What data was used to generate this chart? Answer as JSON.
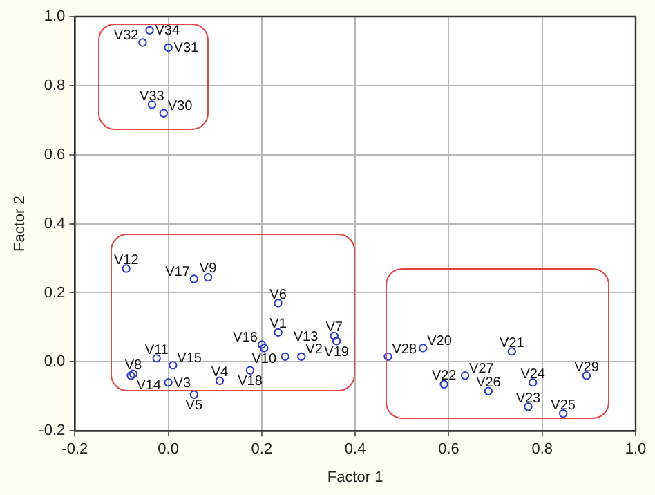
{
  "chart_data": {
    "type": "scatter",
    "xlabel": "Factor 1",
    "ylabel": "Factor 2",
    "xlim": [
      -0.2,
      1.0
    ],
    "ylim": [
      -0.2,
      1.0
    ],
    "xticks": [
      {
        "value": -0.2,
        "label": "-0.2"
      },
      {
        "value": 0,
        "label": "0.0"
      },
      {
        "value": 0.2,
        "label": "0.2"
      },
      {
        "value": 0.4,
        "label": "0.4"
      },
      {
        "value": 0.6,
        "label": "0.6"
      },
      {
        "value": 0.8,
        "label": "0.8"
      },
      {
        "value": 1.0,
        "label": "1.0"
      }
    ],
    "yticks": [
      {
        "value": -0.2,
        "label": "-0.2"
      },
      {
        "value": 0,
        "label": "0.0"
      },
      {
        "value": 0.2,
        "label": "0.2"
      },
      {
        "value": 0.4,
        "label": "0.4"
      },
      {
        "value": 0.6,
        "label": "0.6"
      },
      {
        "value": 0.8,
        "label": "0.8"
      },
      {
        "value": 1.0,
        "label": "1.0"
      }
    ],
    "grid": true,
    "legend": false,
    "marker": "circle",
    "series": [
      {
        "name": "V34",
        "color": "#2a3cc8",
        "x": [
          -0.04
        ],
        "values": [
          0.96
        ]
      },
      {
        "name": "V32",
        "color": "#2a3cc8",
        "x": [
          -0.055
        ],
        "values": [
          0.925
        ]
      },
      {
        "name": "V31",
        "color": "#2a3cc8",
        "x": [
          0.0
        ],
        "values": [
          0.91
        ]
      },
      {
        "name": "V33",
        "color": "#2a3cc8",
        "x": [
          -0.035
        ],
        "values": [
          0.745
        ]
      },
      {
        "name": "V30",
        "color": "#2a3cc8",
        "x": [
          -0.01
        ],
        "values": [
          0.72
        ]
      },
      {
        "name": "V12",
        "color": "#2a3cc8",
        "x": [
          -0.09
        ],
        "values": [
          0.27
        ]
      },
      {
        "name": "V17",
        "color": "#2a3cc8",
        "x": [
          0.055
        ],
        "values": [
          0.24
        ]
      },
      {
        "name": "V9",
        "color": "#2a3cc8",
        "x": [
          0.085
        ],
        "values": [
          0.245
        ]
      },
      {
        "name": "V6",
        "color": "#2a3cc8",
        "x": [
          0.235
        ],
        "values": [
          0.17
        ]
      },
      {
        "name": "V1",
        "color": "#2a3cc8",
        "x": [
          0.235
        ],
        "values": [
          0.085
        ]
      },
      {
        "name": "V16",
        "color": "#2a3cc8",
        "x": [
          0.2
        ],
        "values": [
          0.05
        ]
      },
      {
        "name": "V10",
        "color": "#2a3cc8",
        "x": [
          0.205
        ],
        "values": [
          0.04
        ]
      },
      {
        "name": "V11",
        "color": "#2a3cc8",
        "x": [
          -0.025
        ],
        "values": [
          0.01
        ]
      },
      {
        "name": "V15",
        "color": "#2a3cc8",
        "x": [
          0.01
        ],
        "values": [
          -0.01
        ]
      },
      {
        "name": "V14",
        "color": "#2a3cc8",
        "x": [
          -0.08
        ],
        "values": [
          -0.04
        ]
      },
      {
        "name": "V8",
        "color": "#2a3cc8",
        "x": [
          -0.075
        ],
        "values": [
          -0.035
        ]
      },
      {
        "name": "V3",
        "color": "#2a3cc8",
        "x": [
          0.0
        ],
        "values": [
          -0.06
        ]
      },
      {
        "name": "V5",
        "color": "#2a3cc8",
        "x": [
          0.055
        ],
        "values": [
          -0.095
        ]
      },
      {
        "name": "V4",
        "color": "#2a3cc8",
        "x": [
          0.11
        ],
        "values": [
          -0.055
        ]
      },
      {
        "name": "V18",
        "color": "#2a3cc8",
        "x": [
          0.175
        ],
        "values": [
          -0.025
        ]
      },
      {
        "name": "V13",
        "color": "#2a3cc8",
        "x": [
          0.25
        ],
        "values": [
          0.015
        ]
      },
      {
        "name": "V2",
        "color": "#2a3cc8",
        "x": [
          0.285
        ],
        "values": [
          0.015
        ]
      },
      {
        "name": "V7",
        "color": "#2a3cc8",
        "x": [
          0.355
        ],
        "values": [
          0.075
        ]
      },
      {
        "name": "V19",
        "color": "#2a3cc8",
        "x": [
          0.36
        ],
        "values": [
          0.06
        ]
      },
      {
        "name": "V28",
        "color": "#2a3cc8",
        "x": [
          0.47
        ],
        "values": [
          0.015
        ]
      },
      {
        "name": "V20",
        "color": "#2a3cc8",
        "x": [
          0.545
        ],
        "values": [
          0.04
        ]
      },
      {
        "name": "V22",
        "color": "#2a3cc8",
        "x": [
          0.59
        ],
        "values": [
          -0.065
        ]
      },
      {
        "name": "V27",
        "color": "#2a3cc8",
        "x": [
          0.635
        ],
        "values": [
          -0.04
        ]
      },
      {
        "name": "V26",
        "color": "#2a3cc8",
        "x": [
          0.685
        ],
        "values": [
          -0.085
        ]
      },
      {
        "name": "V21",
        "color": "#2a3cc8",
        "x": [
          0.735
        ],
        "values": [
          0.03
        ]
      },
      {
        "name": "V24",
        "color": "#2a3cc8",
        "x": [
          0.78
        ],
        "values": [
          -0.06
        ]
      },
      {
        "name": "V23",
        "color": "#2a3cc8",
        "x": [
          0.77
        ],
        "values": [
          -0.13
        ]
      },
      {
        "name": "V25",
        "color": "#2a3cc8",
        "x": [
          0.845
        ],
        "values": [
          -0.15
        ]
      },
      {
        "name": "V29",
        "color": "#2a3cc8",
        "x": [
          0.895
        ],
        "values": [
          -0.04
        ]
      }
    ]
  }
}
